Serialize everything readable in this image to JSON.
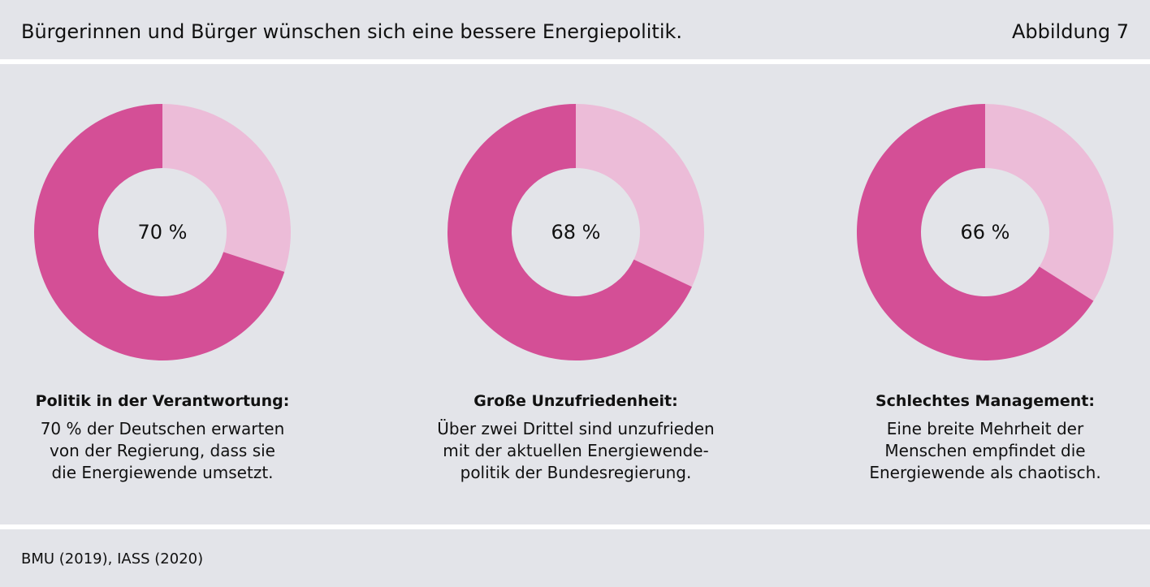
{
  "header": {
    "title": "Bürgerinnen und Bürger wünschen sich eine bessere Energiepolitik.",
    "figure_label": "Abbildung 7"
  },
  "colors": {
    "primary": "#d44f96",
    "secondary": "#ecbcd8",
    "hole": "#e3e4e9",
    "background": "#e3e4e9"
  },
  "chart_data": [
    {
      "type": "pie",
      "values": [
        70,
        30
      ],
      "center_label": "70 %",
      "caption_title": "Politik in der Verantwortung:",
      "caption_lines": [
        "70 % der Deutschen erwarten",
        "von der Regierung, dass sie",
        "die Energiewende umsetzt."
      ]
    },
    {
      "type": "pie",
      "values": [
        68,
        32
      ],
      "center_label": "68 %",
      "caption_title": "Große Unzufriedenheit:",
      "caption_lines": [
        "Über zwei Drittel sind unzufrieden",
        "mit der aktuellen Energiewende-",
        "politik der Bundesregierung."
      ]
    },
    {
      "type": "pie",
      "values": [
        66,
        34
      ],
      "center_label": "66 %",
      "caption_title": "Schlechtes Management:",
      "caption_lines": [
        "Eine breite Mehrheit der",
        "Menschen empfindet die",
        "Energiewende als chaotisch."
      ]
    }
  ],
  "footer": {
    "source": "BMU (2019), IASS (2020)"
  }
}
